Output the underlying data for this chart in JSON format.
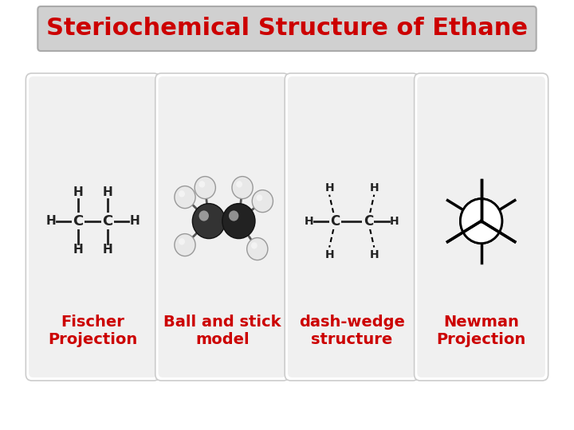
{
  "title": "Steriochemical Structure of Ethane",
  "title_color": "#cc0000",
  "title_fontsize": 22,
  "bg_color": "#ffffff",
  "panel_bg": "#e8e8e8",
  "panel_fg": "#cc0000",
  "label_fontsize": 14,
  "labels": [
    "Fischer\nProjection",
    "Ball and stick\nmodel",
    "dash-wedge\nstructure",
    "Newman\nProjection"
  ],
  "title_box_color": "#d0d0d0",
  "title_box_edge": "#aaaaaa"
}
